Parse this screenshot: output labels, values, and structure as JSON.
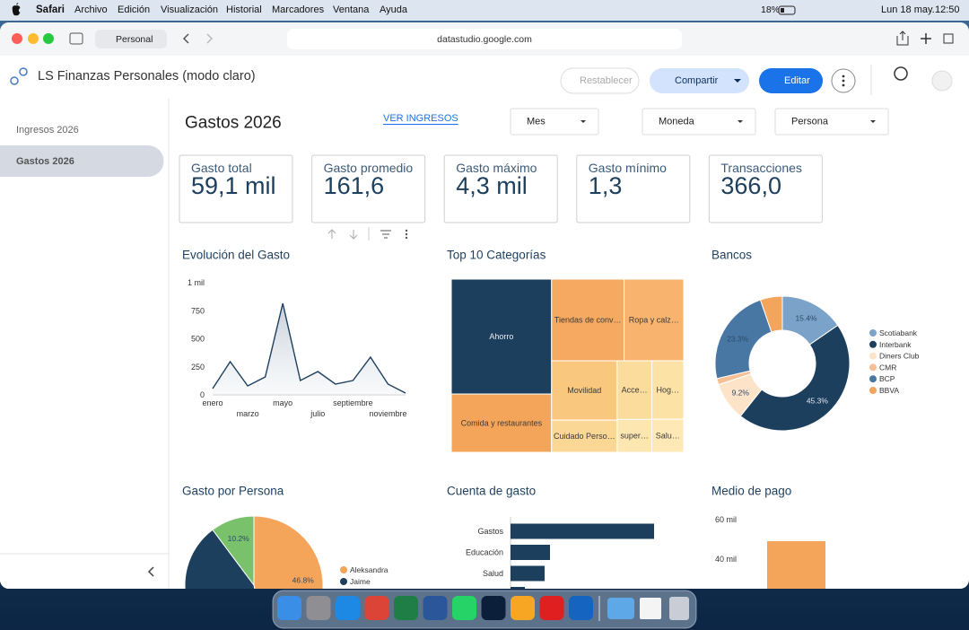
{
  "menubar": {
    "app": "Safari",
    "menus": [
      "Archivo",
      "Edición",
      "Visualización",
      "Historial",
      "Marcadores",
      "Ventana",
      "Ayuda"
    ],
    "battery": "18%",
    "date": "Lun 18 may.",
    "time": "12:50"
  },
  "browser": {
    "profile": "Personal",
    "url": "datastudio.google.com"
  },
  "header": {
    "title": "LS Finanzas Personales (modo claro)",
    "buttons": [
      "Restablecer",
      "Compartir",
      "Editar"
    ]
  },
  "sidebar": {
    "pages": [
      "Ingresos 2026",
      "Gastos 2026"
    ],
    "active": 1
  },
  "report": {
    "title": "Gastos 2026",
    "link": "VER INGRESOS",
    "filters": [
      "Mes",
      "Moneda",
      "Persona"
    ],
    "kpis": [
      {
        "label": "Gasto total",
        "value": "59,1 mil"
      },
      {
        "label": "Gasto promedio",
        "value": "161,6"
      },
      {
        "label": "Gasto máximo",
        "value": "4,3 mil"
      },
      {
        "label": "Gasto mínimo",
        "value": "1,3"
      },
      {
        "label": "Transacciones",
        "value": "366,0"
      }
    ],
    "charts": [
      {
        "type": "line",
        "title": "Evolución del Gasto",
        "color": "#1d3f5e",
        "categories": [
          "enero",
          null,
          "marzo",
          null,
          "mayo",
          null,
          "julio",
          null,
          "septiembre",
          null,
          "noviembre",
          null
        ],
        "values": [
          56,
          296,
          80,
          160,
          816,
          128,
          208,
          96,
          128,
          336,
          96,
          16
        ],
        "ylim": [
          0,
          1000
        ],
        "yticks": [
          0,
          250,
          500,
          750,
          {
            "value": 1000,
            "label": "1 mil"
          }
        ],
        "grid": false
      },
      {
        "type": "treemap",
        "title": "Top 10 Categorías",
        "categories": [
          "Ahorro",
          "Comida y restaurantes",
          "Tiendas de conv…",
          "Ropa y calz…",
          "Movilidad",
          "Acce…",
          "Hog…",
          "Cuidado Perso…",
          "super…",
          "Salu…"
        ],
        "values": [
          14200,
          7200,
          7300,
          6000,
          4800,
          2500,
          2300,
          2600,
          1400,
          1300
        ],
        "colors": [
          "#1d3f5e",
          "#f5a55a",
          "#f6a960",
          "#f8b46e",
          "#f9c77e",
          "#fcdc9d",
          "#fde2a6",
          "#fbd795",
          "#fde6b0",
          "#fee9b6"
        ]
      },
      {
        "type": "donut",
        "title": "Bancos",
        "categories": [
          "Scotiabank",
          "Interbank",
          "Diners Club",
          "CMR",
          "BCP",
          "BBVA"
        ],
        "values": [
          15.4,
          45.3,
          9.2,
          1.5,
          23.3,
          5.3
        ],
        "value_labels": [
          "15.4%",
          "45.3%",
          "9.2%",
          null,
          "23.3%",
          null
        ],
        "colors": [
          "#7ba3c9",
          "#1d3f5e",
          "#fde3c8",
          "#f7bf93",
          "#4877a3",
          "#f4a55c"
        ]
      },
      {
        "type": "pie",
        "title": "Gasto por Persona",
        "categories": [
          "Aleksandra",
          "Jaime",
          null
        ],
        "values": [
          46.8,
          43.0,
          10.2
        ],
        "value_labels": [
          "46.8%",
          null,
          "10.2%"
        ],
        "colors": [
          "#f5a55a",
          "#1d3f5e",
          "#79c16a"
        ]
      },
      {
        "type": "hbar",
        "title": "Cuenta de gasto",
        "color": "#1d3f5e",
        "categories": [
          "Gastos",
          "Educación",
          "Salud",
          null
        ],
        "values": [
          160,
          44,
          38,
          16
        ]
      },
      {
        "type": "bar",
        "title": "Medio de pago",
        "color": "#f5a55a",
        "values": [
          49000
        ],
        "ylim": [
          0,
          64000
        ],
        "yticks": [
          {
            "value": 40000,
            "label": "40 mil"
          },
          {
            "value": 60000,
            "label": "60 mil"
          }
        ]
      }
    ]
  }
}
